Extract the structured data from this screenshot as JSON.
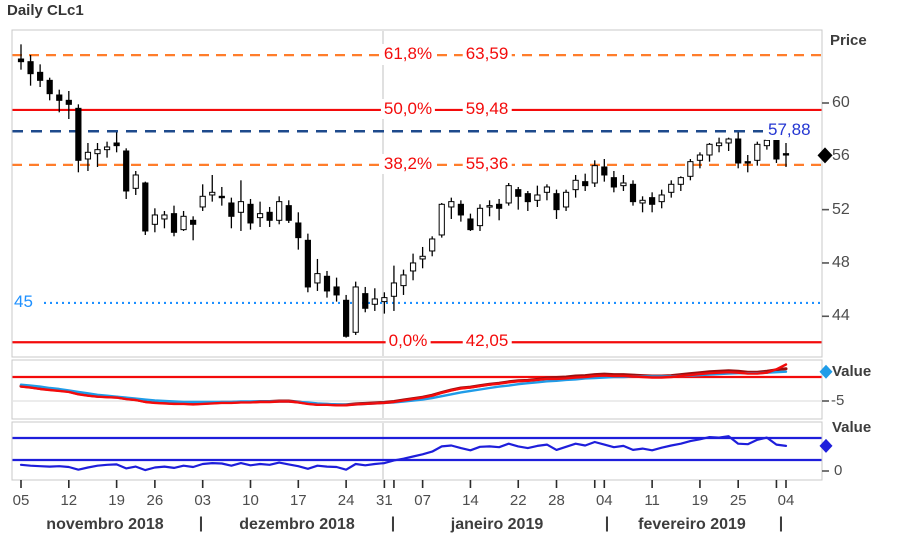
{
  "header": {
    "title": "Daily CLc1"
  },
  "colors": {
    "background": "#ffffff",
    "border": "#c8c8c8",
    "grid": "#e0e0e0",
    "candle": "#000000",
    "fib_orange": "#ff7d2b",
    "fib_red": "#f30b0b",
    "navy_line": "#1e4a8c",
    "navy_label": "#2436d2",
    "dodger_blue": "#1e90ff",
    "macd_red": "#f30b0b",
    "macd_darkred": "#9b1010",
    "macd_blue": "#1f9ce8",
    "osc_blue": "#1e1edb",
    "text_dark": "#3d3d3d",
    "text_tick": "#4d4d4d"
  },
  "price_axis": {
    "title": "Price",
    "ticks": [
      {
        "label": "60",
        "value": 60
      },
      {
        "label": "56",
        "value": 56
      },
      {
        "label": "52",
        "value": 52
      },
      {
        "label": "48",
        "value": 48
      },
      {
        "label": "44",
        "value": 44
      }
    ],
    "last_price": 56.07
  },
  "indicator1": {
    "title": "Value",
    "tick_label": "-5",
    "tick_value": -5,
    "zero_line": 0
  },
  "indicator2": {
    "title": "Value",
    "tick_label": "0",
    "tick_value": 0,
    "upper_band": 75,
    "lower_band": 25
  },
  "annotations": {
    "resistance_line": {
      "label": "57,88",
      "value": 57.88
    },
    "support_line": {
      "label": "45",
      "value": 45
    }
  },
  "fib_levels": [
    {
      "pct": "61,8%",
      "price": "63,59",
      "value": 63.59,
      "style": "dashed",
      "color_key": "fib_orange"
    },
    {
      "pct": "50,0%",
      "price": "59,48",
      "value": 59.48,
      "style": "solid",
      "color_key": "fib_red"
    },
    {
      "pct": "38,2%",
      "price": "55,36",
      "value": 55.36,
      "style": "dashed",
      "color_key": "fib_orange"
    },
    {
      "pct": "0,0%",
      "price": "42,05",
      "value": 42.05,
      "style": "solid",
      "color_key": "fib_red"
    }
  ],
  "x_axis": {
    "separator_char": "|",
    "separators_x": [
      201,
      393,
      607,
      781
    ],
    "months": [
      {
        "label": "novembro 2018",
        "x": 105
      },
      {
        "label": "dezembro 2018",
        "x": 297
      },
      {
        "label": "janeiro 2019",
        "x": 497
      },
      {
        "label": "fevereiro 2019",
        "x": 692
      }
    ],
    "date_ticks": [
      {
        "label": "05",
        "bar": 0
      },
      {
        "label": "12",
        "bar": 5
      },
      {
        "label": "19",
        "bar": 10
      },
      {
        "label": "26",
        "bar": 14
      },
      {
        "label": "03",
        "bar": 19
      },
      {
        "label": "10",
        "bar": 24
      },
      {
        "label": "17",
        "bar": 29
      },
      {
        "label": "24",
        "bar": 34
      },
      {
        "label": "31",
        "bar": 38
      },
      {
        "label": "07",
        "bar": 42
      },
      {
        "label": "14",
        "bar": 47
      },
      {
        "label": "22",
        "bar": 52
      },
      {
        "label": "28",
        "bar": 56
      },
      {
        "label": "04",
        "bar": 61
      },
      {
        "label": "11",
        "bar": 66
      },
      {
        "label": "19",
        "bar": 71
      },
      {
        "label": "25",
        "bar": 75
      },
      {
        "label": "04",
        "bar": 80
      }
    ],
    "month_boundary_bars": [
      39,
      60,
      79
    ]
  },
  "chart_data": [
    {
      "type": "candlestick",
      "title": "Daily CLc1",
      "ylabel": "Price",
      "ylim": [
        41.2,
        65.5
      ],
      "grid": "minimal",
      "dates": [
        "05/11",
        "06/11",
        "07/11",
        "08/11",
        "09/11",
        "12/11",
        "13/11",
        "14/11",
        "15/11",
        "16/11",
        "19/11",
        "20/11",
        "21/11",
        "23/11",
        "26/11",
        "27/11",
        "28/11",
        "29/11",
        "30/11",
        "03/12",
        "04/12",
        "05/12",
        "06/12",
        "07/12",
        "10/12",
        "11/12",
        "12/12",
        "13/12",
        "14/12",
        "17/12",
        "18/12",
        "19/12",
        "20/12",
        "21/12",
        "24/12",
        "26/12",
        "27/12",
        "28/12",
        "31/12",
        "02/01",
        "03/01",
        "04/01",
        "07/01",
        "08/01",
        "09/01",
        "10/01",
        "11/01",
        "14/01",
        "15/01",
        "16/01",
        "17/01",
        "18/01",
        "22/01",
        "23/01",
        "24/01",
        "25/01",
        "28/01",
        "29/01",
        "30/01",
        "31/01",
        "01/02",
        "04/02",
        "05/02",
        "06/02",
        "07/02",
        "08/02",
        "11/02",
        "12/02",
        "13/02",
        "14/02",
        "15/02",
        "19/02",
        "20/02",
        "21/02",
        "22/02",
        "25/02",
        "26/02",
        "27/02",
        "28/02",
        "01/03",
        "04/03"
      ],
      "candles": [
        [
          63.3,
          64.4,
          62.5,
          63.1
        ],
        [
          63.1,
          63.6,
          61.3,
          62.2
        ],
        [
          62.3,
          62.9,
          61.2,
          61.7
        ],
        [
          61.7,
          61.9,
          60.2,
          60.7
        ],
        [
          60.6,
          61.0,
          59.3,
          60.2
        ],
        [
          60.2,
          60.9,
          58.8,
          59.9
        ],
        [
          59.6,
          59.9,
          54.8,
          55.7
        ],
        [
          55.8,
          57.0,
          54.9,
          56.3
        ],
        [
          56.2,
          57.0,
          55.2,
          56.5
        ],
        [
          56.5,
          57.1,
          55.9,
          56.7
        ],
        [
          57.0,
          57.8,
          56.3,
          56.8
        ],
        [
          56.4,
          56.6,
          52.8,
          53.4
        ],
        [
          53.6,
          54.9,
          53.1,
          54.6
        ],
        [
          54.0,
          54.1,
          50.1,
          50.4
        ],
        [
          50.9,
          52.1,
          50.3,
          51.6
        ],
        [
          51.3,
          51.9,
          50.6,
          51.6
        ],
        [
          51.7,
          52.3,
          50.0,
          50.3
        ],
        [
          50.5,
          51.9,
          50.4,
          51.5
        ],
        [
          51.2,
          51.5,
          49.7,
          50.9
        ],
        [
          52.2,
          53.9,
          51.9,
          53.0
        ],
        [
          53.1,
          54.6,
          52.6,
          53.3
        ],
        [
          53.0,
          53.7,
          52.3,
          52.9
        ],
        [
          52.5,
          52.9,
          50.6,
          51.5
        ],
        [
          51.8,
          54.2,
          50.4,
          52.6
        ],
        [
          52.4,
          52.8,
          50.5,
          51.0
        ],
        [
          51.4,
          52.6,
          50.7,
          51.7
        ],
        [
          51.8,
          52.2,
          50.7,
          51.2
        ],
        [
          51.2,
          53.0,
          50.9,
          52.6
        ],
        [
          52.3,
          52.7,
          51.0,
          51.2
        ],
        [
          51.0,
          51.8,
          49.0,
          49.9
        ],
        [
          49.7,
          50.2,
          45.8,
          46.2
        ],
        [
          46.5,
          48.3,
          45.9,
          47.2
        ],
        [
          47.0,
          47.4,
          45.4,
          45.9
        ],
        [
          46.2,
          46.9,
          45.1,
          45.6
        ],
        [
          45.2,
          45.6,
          42.4,
          42.5
        ],
        [
          42.8,
          46.6,
          42.6,
          46.2
        ],
        [
          45.7,
          46.2,
          44.3,
          44.6
        ],
        [
          44.9,
          46.1,
          44.4,
          45.3
        ],
        [
          45.1,
          45.8,
          44.2,
          45.4
        ],
        [
          45.5,
          47.8,
          44.4,
          46.5
        ],
        [
          46.3,
          47.5,
          45.6,
          47.1
        ],
        [
          47.4,
          48.7,
          46.7,
          48.0
        ],
        [
          48.3,
          49.2,
          47.6,
          48.5
        ],
        [
          48.9,
          50.0,
          48.5,
          49.8
        ],
        [
          50.1,
          52.5,
          49.9,
          52.4
        ],
        [
          52.2,
          52.9,
          51.3,
          52.6
        ],
        [
          52.4,
          52.7,
          51.1,
          51.6
        ],
        [
          51.3,
          51.7,
          50.4,
          50.5
        ],
        [
          50.8,
          52.4,
          50.4,
          52.1
        ],
        [
          52.2,
          52.7,
          51.5,
          52.3
        ],
        [
          52.4,
          52.8,
          51.2,
          52.1
        ],
        [
          52.5,
          54.0,
          52.3,
          53.8
        ],
        [
          53.5,
          53.7,
          52.0,
          53.0
        ],
        [
          53.2,
          53.4,
          51.9,
          52.6
        ],
        [
          52.7,
          53.8,
          52.2,
          53.1
        ],
        [
          53.3,
          53.9,
          52.7,
          53.7
        ],
        [
          53.2,
          53.5,
          51.3,
          52.0
        ],
        [
          52.2,
          53.5,
          51.9,
          53.3
        ],
        [
          53.5,
          54.6,
          52.9,
          54.2
        ],
        [
          54.1,
          54.7,
          53.4,
          53.8
        ],
        [
          54.0,
          55.7,
          53.7,
          55.3
        ],
        [
          55.2,
          55.8,
          54.1,
          54.6
        ],
        [
          54.4,
          54.9,
          53.3,
          53.7
        ],
        [
          53.8,
          54.6,
          53.4,
          54.0
        ],
        [
          53.9,
          54.2,
          52.3,
          52.6
        ],
        [
          52.5,
          53.0,
          51.8,
          52.7
        ],
        [
          52.9,
          53.3,
          51.8,
          52.4
        ],
        [
          52.6,
          53.5,
          52.1,
          53.1
        ],
        [
          53.3,
          54.2,
          52.9,
          53.9
        ],
        [
          53.9,
          54.5,
          53.4,
          54.4
        ],
        [
          54.5,
          55.8,
          54.2,
          55.6
        ],
        [
          55.7,
          56.3,
          55.1,
          56.1
        ],
        [
          56.1,
          57.0,
          55.6,
          56.9
        ],
        [
          56.8,
          57.4,
          56.3,
          57.0
        ],
        [
          57.0,
          57.4,
          56.4,
          57.3
        ],
        [
          57.3,
          57.8,
          55.1,
          55.5
        ],
        [
          55.6,
          56.1,
          54.8,
          55.5
        ],
        [
          55.7,
          57.1,
          55.3,
          56.9
        ],
        [
          56.8,
          57.6,
          56.5,
          57.2
        ],
        [
          57.3,
          57.9,
          55.5,
          55.8
        ],
        [
          56.2,
          57.0,
          55.2,
          56.1
        ]
      ]
    },
    {
      "type": "line",
      "ylabel": "Value",
      "tick_values": [
        -5
      ],
      "hlines": [
        0
      ],
      "series": [
        {
          "name": "oscillator-darkred",
          "color_key": "macd_darkred",
          "values": [
            -1.9,
            -2.1,
            -2.4,
            -2.6,
            -2.8,
            -3.0,
            -3.5,
            -3.8,
            -4.0,
            -4.1,
            -4.2,
            -4.5,
            -4.7,
            -5.1,
            -5.3,
            -5.4,
            -5.5,
            -5.5,
            -5.6,
            -5.5,
            -5.4,
            -5.3,
            -5.3,
            -5.2,
            -5.2,
            -5.1,
            -5.1,
            -5.0,
            -5.0,
            -5.2,
            -5.5,
            -5.7,
            -5.7,
            -5.8,
            -5.8,
            -5.6,
            -5.5,
            -5.4,
            -5.3,
            -5.1,
            -4.8,
            -4.5,
            -4.2,
            -3.8,
            -3.2,
            -2.7,
            -2.3,
            -2.1,
            -1.8,
            -1.5,
            -1.3,
            -1.0,
            -0.8,
            -0.7,
            -0.5,
            -0.2,
            -0.1,
            0.0,
            0.2,
            0.3,
            0.5,
            0.6,
            0.5,
            0.5,
            0.4,
            0.3,
            0.2,
            0.2,
            0.3,
            0.5,
            0.7,
            0.9,
            1.1,
            1.2,
            1.3,
            1.2,
            1.0,
            1.0,
            1.2,
            1.5,
            1.7
          ]
        },
        {
          "name": "oscillator-blue",
          "color_key": "macd_blue",
          "values": [
            -1.6,
            -1.8,
            -2.0,
            -2.3,
            -2.5,
            -2.8,
            -3.1,
            -3.4,
            -3.7,
            -3.9,
            -4.1,
            -4.3,
            -4.5,
            -4.7,
            -4.9,
            -5.0,
            -5.1,
            -5.2,
            -5.2,
            -5.2,
            -5.2,
            -5.2,
            -5.2,
            -5.1,
            -5.1,
            -5.1,
            -5.1,
            -5.1,
            -5.1,
            -5.2,
            -5.3,
            -5.5,
            -5.6,
            -5.7,
            -5.8,
            -5.7,
            -5.6,
            -5.5,
            -5.4,
            -5.3,
            -5.1,
            -4.9,
            -4.7,
            -4.4,
            -4.0,
            -3.6,
            -3.2,
            -2.9,
            -2.6,
            -2.3,
            -2.0,
            -1.8,
            -1.5,
            -1.3,
            -1.1,
            -0.9,
            -0.8,
            -0.6,
            -0.5,
            -0.3,
            -0.2,
            -0.1,
            0.0,
            0.0,
            0.1,
            0.1,
            0.1,
            0.1,
            0.1,
            0.2,
            0.3,
            0.4,
            0.5,
            0.6,
            0.7,
            0.8,
            0.8,
            0.8,
            0.9,
            1.0,
            1.1
          ]
        },
        {
          "name": "oscillator-red",
          "color_key": "macd_red",
          "values": [
            -2.0,
            -2.2,
            -2.5,
            -2.7,
            -2.9,
            -3.1,
            -3.6,
            -3.9,
            -4.1,
            -4.2,
            -4.3,
            -4.6,
            -4.8,
            -5.2,
            -5.4,
            -5.5,
            -5.6,
            -5.6,
            -5.7,
            -5.6,
            -5.5,
            -5.4,
            -5.4,
            -5.3,
            -5.3,
            -5.2,
            -5.2,
            -5.1,
            -5.1,
            -5.3,
            -5.6,
            -5.8,
            -5.8,
            -5.9,
            -5.9,
            -5.7,
            -5.6,
            -5.5,
            -5.4,
            -5.2,
            -4.9,
            -4.6,
            -4.3,
            -3.9,
            -3.3,
            -2.8,
            -2.4,
            -2.2,
            -1.9,
            -1.6,
            -1.4,
            -1.1,
            -0.9,
            -0.8,
            -0.6,
            -0.4,
            -0.4,
            -0.3,
            -0.1,
            0.0,
            0.2,
            0.3,
            0.2,
            0.2,
            0.1,
            0.0,
            -0.1,
            -0.1,
            0.0,
            0.2,
            0.4,
            0.6,
            0.8,
            0.9,
            1.0,
            0.9,
            0.7,
            0.7,
            0.9,
            1.6,
            2.6
          ]
        }
      ]
    },
    {
      "type": "line",
      "ylabel": "Value",
      "tick_values": [
        0
      ],
      "hlines": [
        75,
        25
      ],
      "series": [
        {
          "name": "momentum-blue",
          "color_key": "osc_blue",
          "values": [
            14,
            12,
            11,
            10,
            11,
            9,
            3,
            8,
            12,
            14,
            15,
            6,
            10,
            2,
            8,
            10,
            7,
            12,
            9,
            16,
            18,
            17,
            12,
            18,
            13,
            16,
            14,
            19,
            15,
            11,
            5,
            12,
            10,
            9,
            3,
            16,
            13,
            16,
            18,
            24,
            28,
            33,
            38,
            44,
            56,
            58,
            52,
            47,
            55,
            56,
            54,
            62,
            56,
            52,
            57,
            60,
            48,
            55,
            62,
            58,
            66,
            60,
            54,
            57,
            48,
            51,
            47,
            53,
            58,
            62,
            68,
            72,
            77,
            76,
            79,
            62,
            61,
            71,
            76,
            60,
            57
          ]
        }
      ]
    }
  ]
}
